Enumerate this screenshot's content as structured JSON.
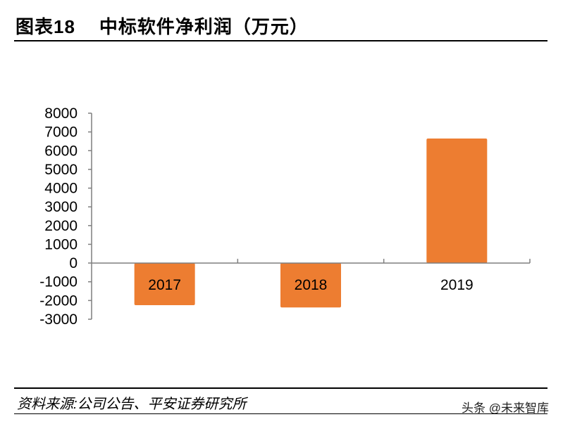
{
  "header": {
    "figure_no": "图表18",
    "title": "中标软件净利润（万元）"
  },
  "footer": {
    "source": "资料来源:公司公告、平安证券研究所",
    "watermark": "头条 @未来智库"
  },
  "colors": {
    "bar": "#ED7D31",
    "axis": "#7f7f7f"
  },
  "chart_data": {
    "type": "bar",
    "title": "中标软件净利润（万元）",
    "categories": [
      "2017",
      "2018",
      "2019"
    ],
    "values": [
      -2250,
      -2370,
      6650
    ],
    "ylim": [
      -3000,
      8000
    ],
    "yticks": [
      8000,
      7000,
      6000,
      5000,
      4000,
      3000,
      2000,
      1000,
      0,
      -1000,
      -2000,
      -3000
    ],
    "grid": false,
    "legend": "none"
  }
}
